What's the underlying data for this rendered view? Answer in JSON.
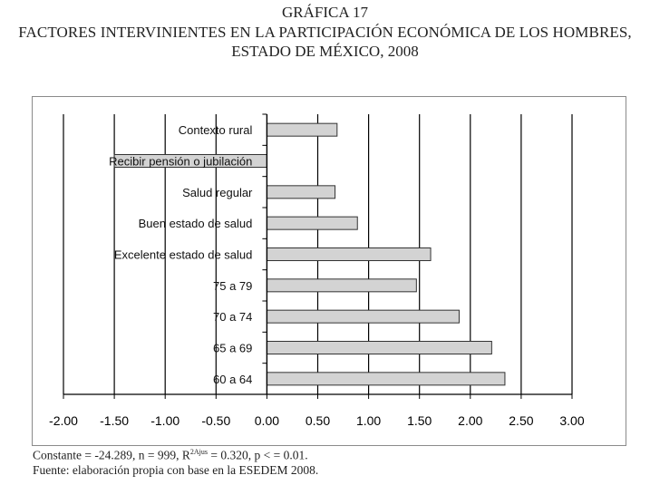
{
  "header": {
    "figure_number": "GRÁFICA 17",
    "title_line1": "FACTORES INTERVINIENTES EN LA PARTICIPACIÓN ECONÓMICA DE LOS HOMBRES,",
    "title_line2": "ESTADO DE MÉXICO, 2008"
  },
  "footer": {
    "stats_prefix": "Constante = -24.289, n = 999, R",
    "stats_sup": "2Ajus",
    "stats_suffix": " = 0.320, p < = 0.01.",
    "source": "Fuente: elaboración propia con base en la ESEDEM 2008."
  },
  "chart_data": {
    "type": "bar",
    "orientation": "horizontal",
    "categories": [
      "Contexto rural",
      "Recibir pensión o jubilación",
      "Salud regular",
      "Buen estado de salud",
      "Excelente estado de salud",
      "75 a 79",
      "70 a 74",
      "65 a 69",
      "60 a 64"
    ],
    "values": [
      0.69,
      -1.5,
      0.67,
      0.89,
      1.61,
      1.47,
      1.89,
      2.21,
      2.34
    ],
    "xlim": [
      -2.0,
      3.0
    ],
    "xticks": [
      "-2.00",
      "-1.50",
      "-1.00",
      "-0.50",
      "0.00",
      "0.50",
      "1.00",
      "1.50",
      "2.00",
      "2.50",
      "3.00"
    ],
    "grid": "vertical",
    "bar_color": "#d3d3d3",
    "bar_edge": "#333333"
  }
}
